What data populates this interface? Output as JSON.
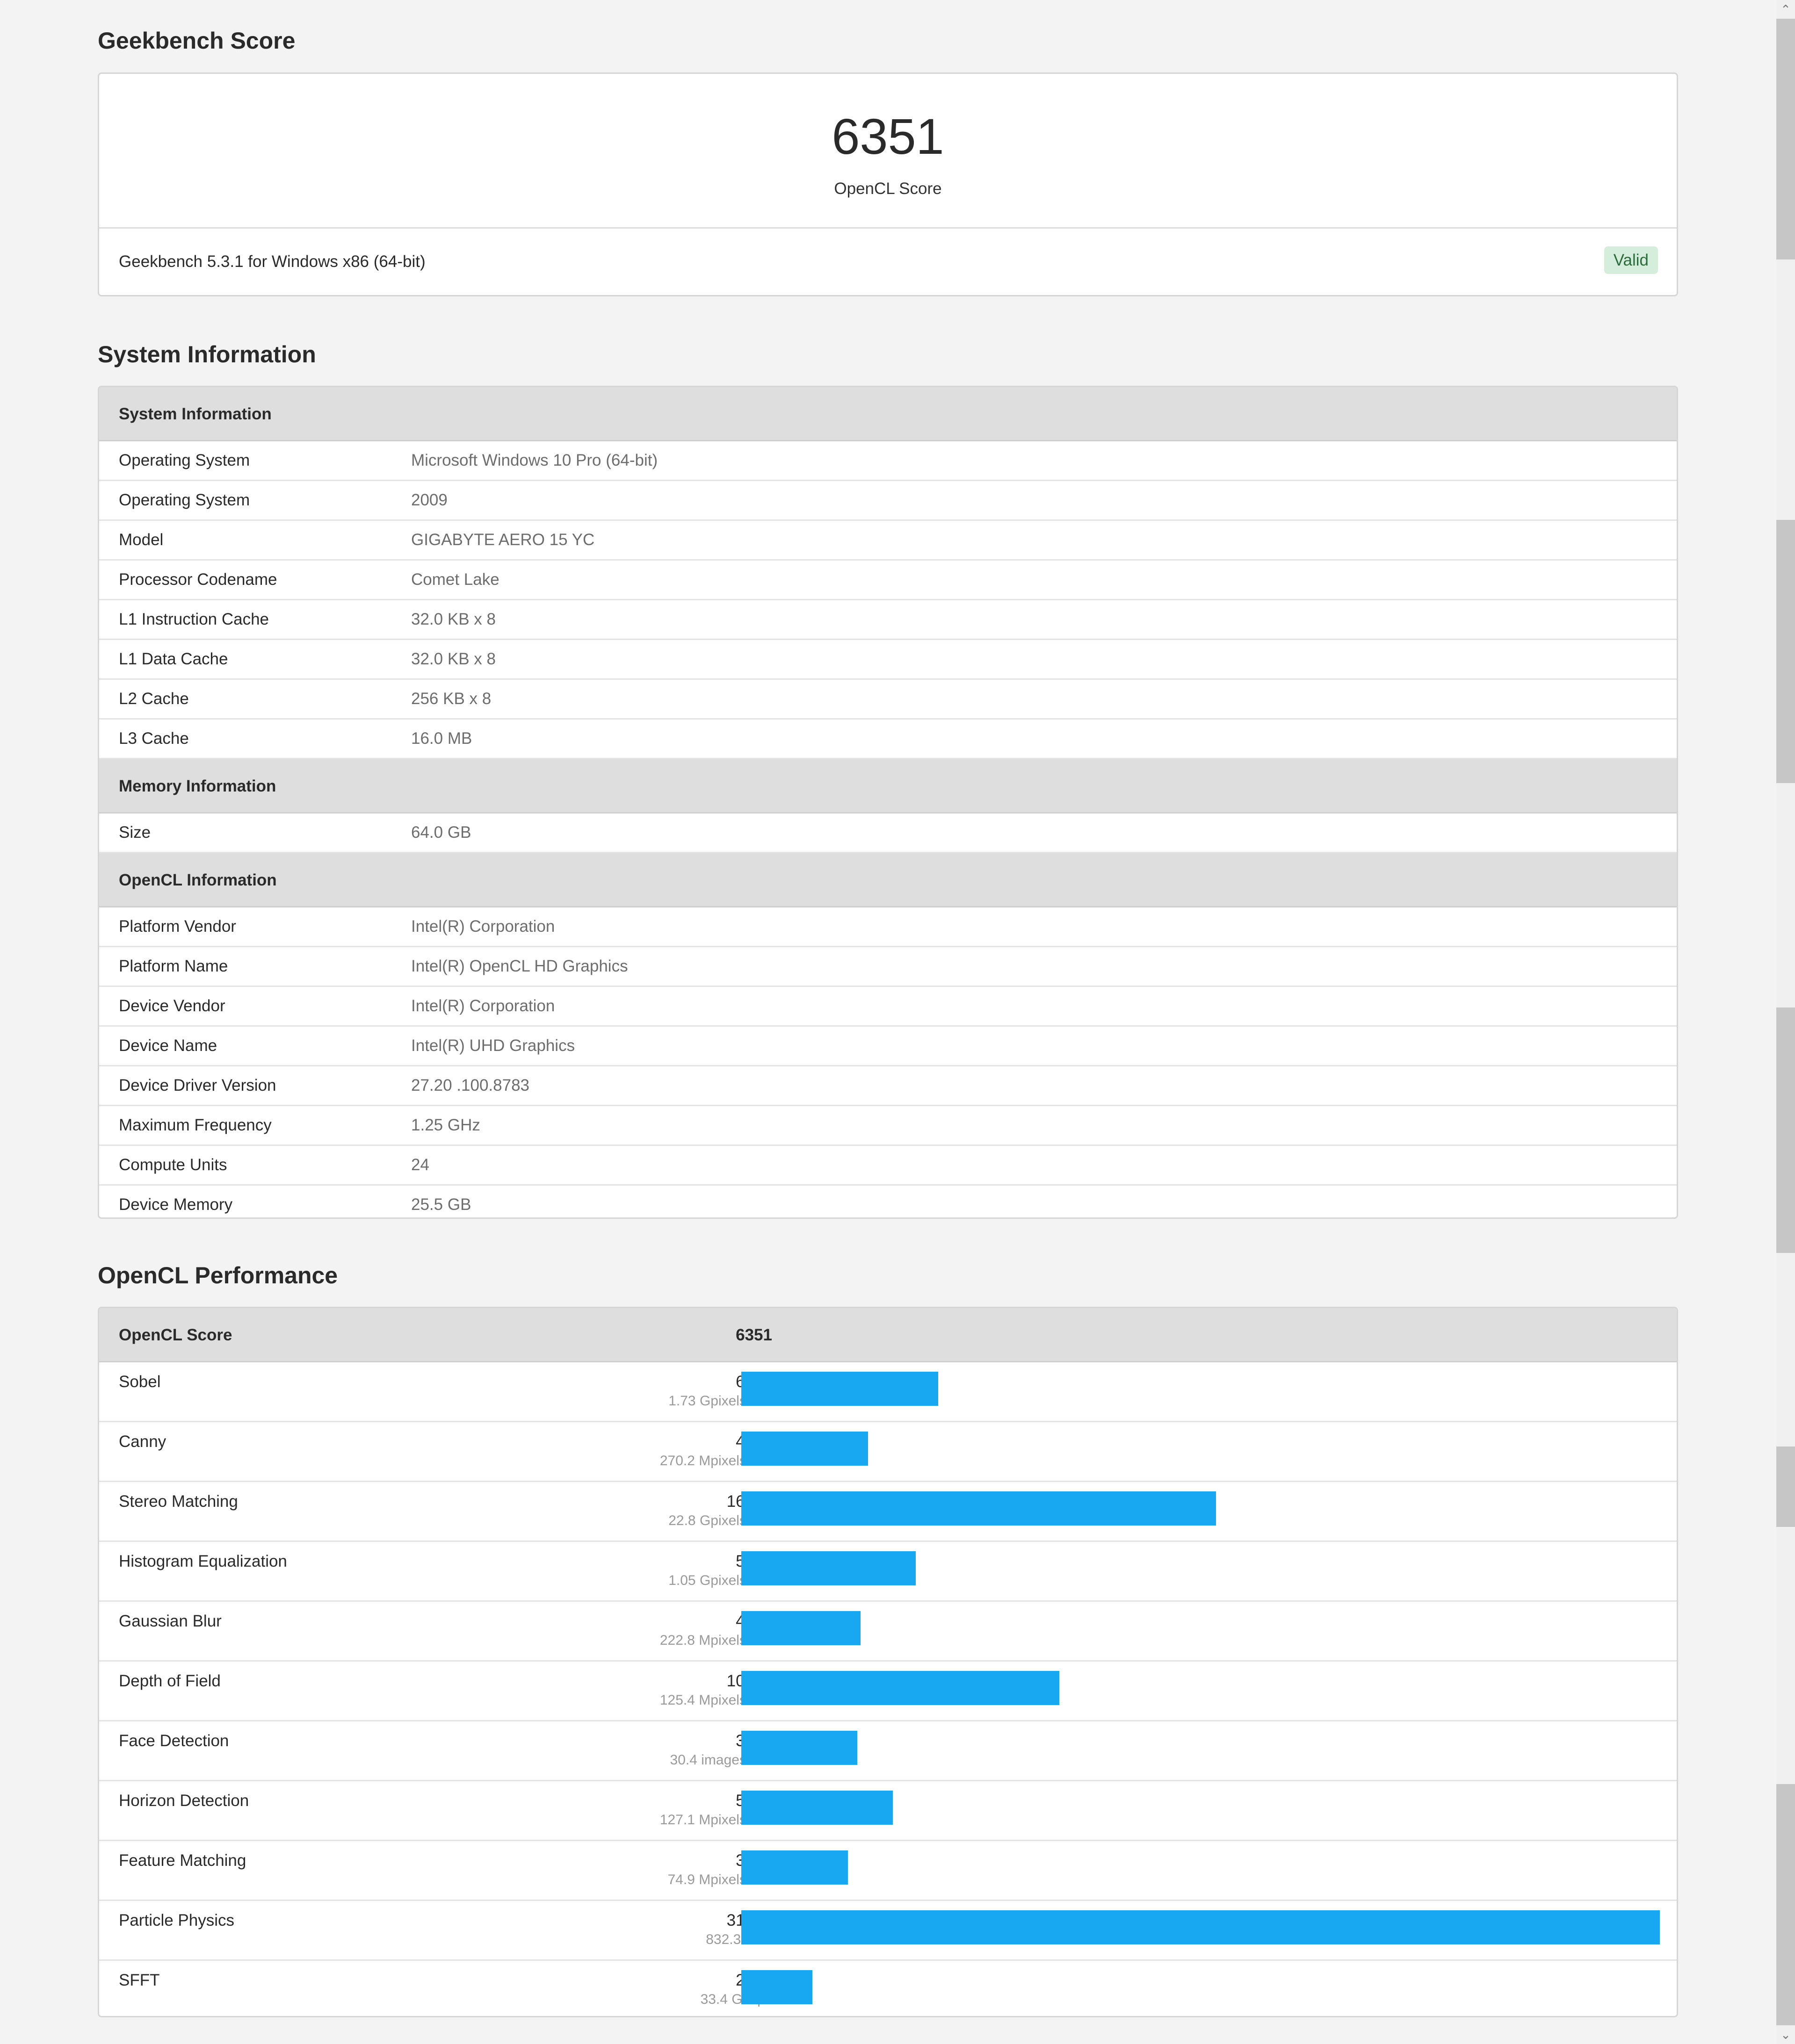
{
  "score_section": {
    "title": "Geekbench Score",
    "score": "6351",
    "score_label": "OpenCL Score",
    "version": "Geekbench 5.3.1 for Windows x86 (64-bit)",
    "badge": "Valid"
  },
  "system_section": {
    "title": "System Information",
    "groups": [
      {
        "header": "System Information",
        "rows": [
          {
            "key": "Operating System",
            "value": "Microsoft Windows 10 Pro (64-bit)"
          },
          {
            "key": "Operating System",
            "value": "2009"
          },
          {
            "key": "Model",
            "value": "GIGABYTE AERO 15 YC"
          },
          {
            "key": "Processor Codename",
            "value": "Comet Lake"
          },
          {
            "key": "L1 Instruction Cache",
            "value": "32.0 KB x 8"
          },
          {
            "key": "L1 Data Cache",
            "value": "32.0 KB x 8"
          },
          {
            "key": "L2 Cache",
            "value": "256 KB x 8"
          },
          {
            "key": "L3 Cache",
            "value": "16.0 MB"
          }
        ]
      },
      {
        "header": "Memory Information",
        "rows": [
          {
            "key": "Size",
            "value": "64.0 GB"
          }
        ]
      },
      {
        "header": "OpenCL Information",
        "rows": [
          {
            "key": "Platform Vendor",
            "value": "Intel(R) Corporation"
          },
          {
            "key": "Platform Name",
            "value": "Intel(R) OpenCL HD Graphics"
          },
          {
            "key": "Device Vendor",
            "value": "Intel(R) Corporation"
          },
          {
            "key": "Device Name",
            "value": "Intel(R) UHD Graphics"
          },
          {
            "key": "Device Driver Version",
            "value": "27.20 .100.8783"
          },
          {
            "key": "Maximum Frequency",
            "value": "1.25 GHz"
          },
          {
            "key": "Compute Units",
            "value": "24"
          },
          {
            "key": "Device Memory",
            "value": "25.5 GB"
          }
        ]
      }
    ]
  },
  "performance_section": {
    "title": "OpenCL Performance",
    "header_label": "OpenCL Score",
    "header_score": "6351",
    "bar_color": "#18a8f1",
    "chart_data": {
      "type": "bar",
      "categories": [
        "Sobel",
        "Canny",
        "Stereo Matching",
        "Histogram Equalization",
        "Gaussian Blur",
        "Depth of Field",
        "Face Detection",
        "Horizon Detection",
        "Feature Matching",
        "Particle Physics",
        "SFFT"
      ],
      "values": [
        6704,
        4316,
        16150,
        5927,
        4053,
        10812,
        3950,
        5158,
        3622,
        31246,
        2423
      ],
      "rates": [
        "1.73 Gpixels/sec",
        "270.2 Mpixels/sec",
        "22.8 Gpixels/sec",
        "1.05 Gpixels/sec",
        "222.8 Mpixels/sec",
        "125.4 Mpixels/sec",
        "30.4 images/sec",
        "127.1 Mpixels/sec",
        "74.9 Mpixels/sec",
        "832.3 FPS",
        "33.4 Gflops"
      ]
    }
  }
}
